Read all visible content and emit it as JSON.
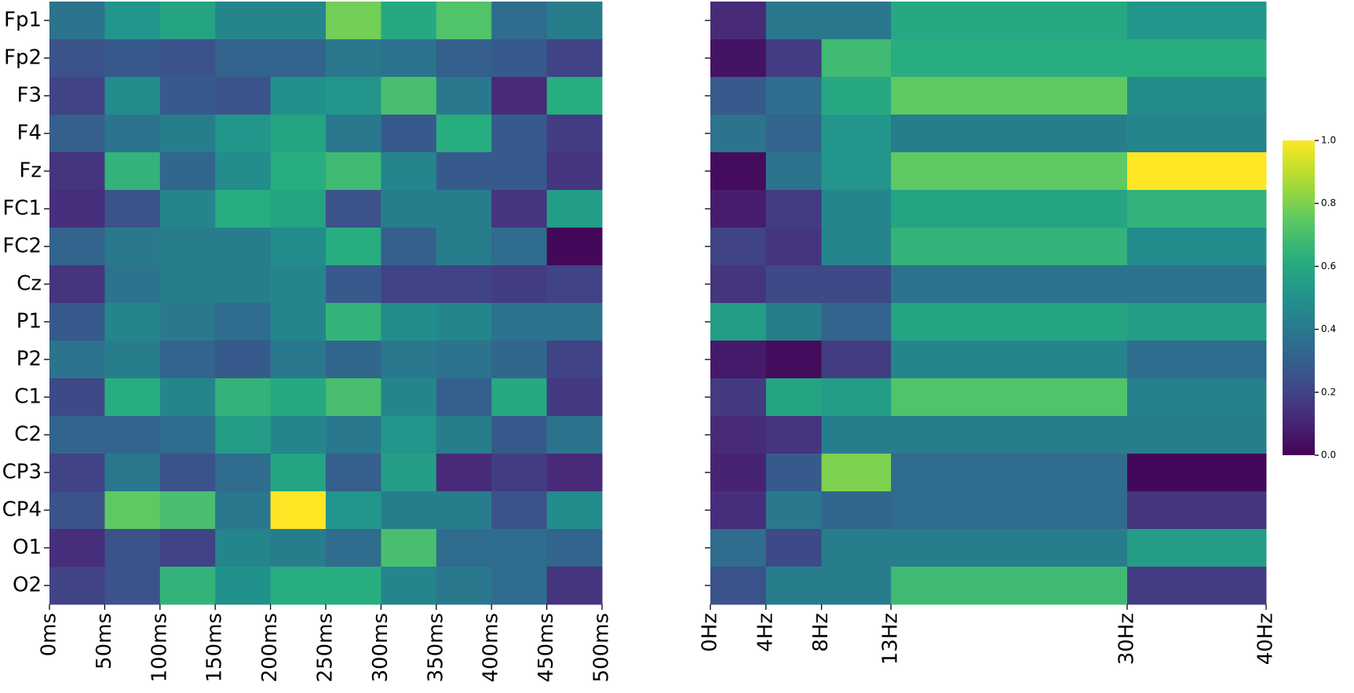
{
  "chart_data": [
    {
      "type": "heatmap",
      "colormap": "viridis",
      "rows": [
        "Fp1",
        "Fp2",
        "F3",
        "F4",
        "Fz",
        "FC1",
        "FC2",
        "Cz",
        "P1",
        "P2",
        "C1",
        "C2",
        "CP3",
        "CP4",
        "O1",
        "O2"
      ],
      "xlim": [
        0,
        500
      ],
      "xticks": [
        {
          "value": 0,
          "label": "0ms"
        },
        {
          "value": 50,
          "label": "50ms"
        },
        {
          "value": 100,
          "label": "100ms"
        },
        {
          "value": 150,
          "label": "150ms"
        },
        {
          "value": 200,
          "label": "200ms"
        },
        {
          "value": 250,
          "label": "250ms"
        },
        {
          "value": 300,
          "label": "300ms"
        },
        {
          "value": 350,
          "label": "350ms"
        },
        {
          "value": 400,
          "label": "400ms"
        },
        {
          "value": 450,
          "label": "450ms"
        },
        {
          "value": 500,
          "label": "500ms"
        }
      ],
      "values": [
        [
          0.38,
          0.52,
          0.58,
          0.45,
          0.45,
          0.78,
          0.6,
          0.72,
          0.35,
          0.42
        ],
        [
          0.25,
          0.28,
          0.25,
          0.32,
          0.32,
          0.4,
          0.38,
          0.3,
          0.28,
          0.2
        ],
        [
          0.2,
          0.48,
          0.28,
          0.25,
          0.5,
          0.52,
          0.7,
          0.4,
          0.12,
          0.62
        ],
        [
          0.3,
          0.38,
          0.42,
          0.52,
          0.58,
          0.4,
          0.28,
          0.62,
          0.28,
          0.18
        ],
        [
          0.15,
          0.65,
          0.33,
          0.48,
          0.62,
          0.68,
          0.45,
          0.28,
          0.28,
          0.15
        ],
        [
          0.13,
          0.25,
          0.45,
          0.62,
          0.58,
          0.25,
          0.42,
          0.42,
          0.15,
          0.55
        ],
        [
          0.32,
          0.4,
          0.42,
          0.42,
          0.48,
          0.62,
          0.3,
          0.42,
          0.35,
          0.02
        ],
        [
          0.15,
          0.38,
          0.42,
          0.42,
          0.45,
          0.28,
          0.2,
          0.2,
          0.18,
          0.2
        ],
        [
          0.28,
          0.45,
          0.4,
          0.35,
          0.45,
          0.65,
          0.48,
          0.45,
          0.38,
          0.38
        ],
        [
          0.38,
          0.42,
          0.32,
          0.28,
          0.4,
          0.33,
          0.4,
          0.38,
          0.33,
          0.2
        ],
        [
          0.22,
          0.62,
          0.45,
          0.65,
          0.6,
          0.7,
          0.45,
          0.3,
          0.6,
          0.17
        ],
        [
          0.32,
          0.32,
          0.35,
          0.55,
          0.45,
          0.4,
          0.52,
          0.42,
          0.28,
          0.38
        ],
        [
          0.2,
          0.4,
          0.25,
          0.35,
          0.58,
          0.3,
          0.55,
          0.12,
          0.18,
          0.12
        ],
        [
          0.25,
          0.75,
          0.7,
          0.4,
          1.0,
          0.52,
          0.42,
          0.42,
          0.25,
          0.48
        ],
        [
          0.13,
          0.25,
          0.2,
          0.45,
          0.42,
          0.35,
          0.7,
          0.35,
          0.35,
          0.32
        ],
        [
          0.2,
          0.25,
          0.65,
          0.5,
          0.62,
          0.62,
          0.45,
          0.4,
          0.35,
          0.15
        ]
      ]
    },
    {
      "type": "heatmap",
      "colormap": "viridis",
      "xlim": [
        0,
        40
      ],
      "xticks": [
        {
          "value": 0,
          "label": "0Hz"
        },
        {
          "value": 4,
          "label": "4Hz"
        },
        {
          "value": 8,
          "label": "8Hz"
        },
        {
          "value": 13,
          "label": "13Hz"
        },
        {
          "value": 30,
          "label": "30Hz"
        },
        {
          "value": 40,
          "label": "40Hz"
        }
      ],
      "values": [
        [
          0.12,
          0.4,
          0.4,
          0.6,
          0.52
        ],
        [
          0.05,
          0.18,
          0.68,
          0.62,
          0.62
        ],
        [
          0.28,
          0.35,
          0.6,
          0.75,
          0.48
        ],
        [
          0.38,
          0.32,
          0.52,
          0.42,
          0.45
        ],
        [
          0.03,
          0.38,
          0.52,
          0.75,
          1.0
        ],
        [
          0.08,
          0.18,
          0.45,
          0.58,
          0.65
        ],
        [
          0.2,
          0.15,
          0.45,
          0.65,
          0.48
        ],
        [
          0.15,
          0.22,
          0.22,
          0.38,
          0.38
        ],
        [
          0.55,
          0.42,
          0.32,
          0.58,
          0.55
        ],
        [
          0.07,
          0.03,
          0.18,
          0.45,
          0.35
        ],
        [
          0.17,
          0.58,
          0.55,
          0.72,
          0.43
        ],
        [
          0.12,
          0.15,
          0.42,
          0.42,
          0.42
        ],
        [
          0.1,
          0.28,
          0.8,
          0.35,
          0.02
        ],
        [
          0.13,
          0.4,
          0.33,
          0.35,
          0.15
        ],
        [
          0.35,
          0.22,
          0.42,
          0.42,
          0.55
        ],
        [
          0.25,
          0.42,
          0.42,
          0.68,
          0.18
        ]
      ],
      "clim": [
        0,
        1
      ],
      "cticks": [
        {
          "value": 0,
          "label": "0.0"
        },
        0.2,
        0.4,
        0.6,
        0.8,
        {
          "value": 1,
          "label": "1.0"
        }
      ]
    }
  ]
}
